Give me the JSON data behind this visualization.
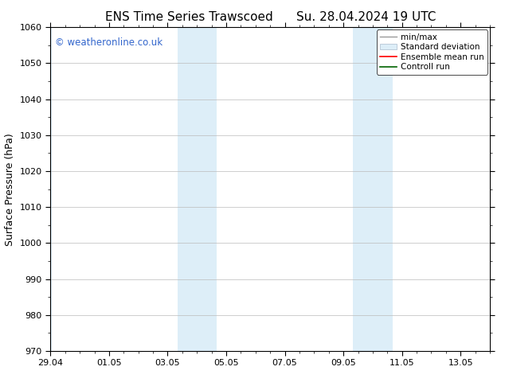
{
  "title_left": "ENS Time Series Trawscoed",
  "title_right": "Su. 28.04.2024 19 UTC",
  "ylabel": "Surface Pressure (hPa)",
  "ylim": [
    970,
    1060
  ],
  "yticks": [
    970,
    980,
    990,
    1000,
    1010,
    1020,
    1030,
    1040,
    1050,
    1060
  ],
  "xtick_labels": [
    "29.04",
    "01.05",
    "03.05",
    "05.05",
    "07.05",
    "09.05",
    "11.05",
    "13.05"
  ],
  "xtick_positions": [
    0,
    2,
    4,
    6,
    8,
    10,
    12,
    14
  ],
  "xlim": [
    0,
    15
  ],
  "shaded_bands": [
    {
      "x_start": 4.33,
      "x_end": 5.67
    },
    {
      "x_start": 10.33,
      "x_end": 11.67
    }
  ],
  "left_shade": {
    "x_start": -0.1,
    "x_end": 0.07
  },
  "shaded_color": "#ddeef8",
  "watermark_text": "© weatheronline.co.uk",
  "watermark_color": "#3366cc",
  "legend_items": [
    {
      "label": "min/max",
      "color": "#aaaaaa",
      "lw": 1.0
    },
    {
      "label": "Standard deviation",
      "color": "#ddeef8",
      "lw": 6
    },
    {
      "label": "Ensemble mean run",
      "color": "red",
      "lw": 1.5
    },
    {
      "label": "Controll run",
      "color": "darkgreen",
      "lw": 1.5
    }
  ],
  "bg_color": "#ffffff",
  "axes_bg_color": "#ffffff",
  "tick_label_fontsize": 8,
  "axis_label_fontsize": 9,
  "title_fontsize": 11
}
